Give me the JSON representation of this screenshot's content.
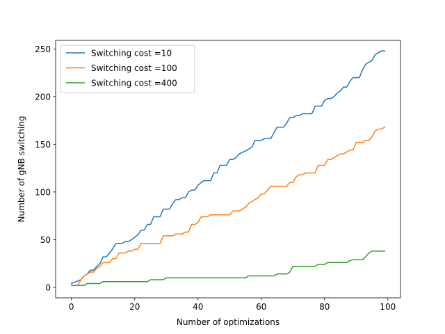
{
  "chart_data": {
    "type": "line",
    "title": "",
    "xlabel": "Number of optimizations",
    "ylabel": "Number of gNB switching",
    "xlim": [
      -5,
      104
    ],
    "ylim": [
      -11,
      259
    ],
    "xticks": [
      0,
      20,
      40,
      60,
      80,
      100
    ],
    "yticks": [
      0,
      50,
      100,
      150,
      200,
      250
    ],
    "grid": false,
    "legend_position": "top-left",
    "series": [
      {
        "name": "Switching cost =10",
        "color": "#1f77b4",
        "points": [
          [
            0,
            4
          ],
          [
            3,
            8
          ],
          [
            4,
            12
          ],
          [
            5,
            14
          ],
          [
            6,
            18
          ],
          [
            7,
            18
          ],
          [
            8,
            22
          ],
          [
            9,
            25
          ],
          [
            10,
            32
          ],
          [
            11,
            32
          ],
          [
            12,
            36
          ],
          [
            13,
            40
          ],
          [
            14,
            46
          ],
          [
            16,
            46
          ],
          [
            17,
            48
          ],
          [
            18,
            48
          ],
          [
            19,
            50
          ],
          [
            21,
            55
          ],
          [
            22,
            60
          ],
          [
            23,
            60
          ],
          [
            24,
            66
          ],
          [
            25,
            66
          ],
          [
            26,
            74
          ],
          [
            28,
            74
          ],
          [
            29,
            82
          ],
          [
            31,
            82
          ],
          [
            32,
            88
          ],
          [
            33,
            92
          ],
          [
            34,
            92
          ],
          [
            35,
            94
          ],
          [
            36,
            94
          ],
          [
            37,
            100
          ],
          [
            38,
            102
          ],
          [
            39,
            102
          ],
          [
            40,
            107
          ],
          [
            41,
            110
          ],
          [
            42,
            112
          ],
          [
            44,
            112
          ],
          [
            45,
            120
          ],
          [
            46,
            120
          ],
          [
            47,
            128
          ],
          [
            49,
            128
          ],
          [
            50,
            134
          ],
          [
            51,
            134
          ],
          [
            52,
            136
          ],
          [
            53,
            140
          ],
          [
            55,
            143
          ],
          [
            57,
            147
          ],
          [
            58,
            154
          ],
          [
            60,
            154
          ],
          [
            61,
            156
          ],
          [
            63,
            156
          ],
          [
            64,
            162
          ],
          [
            65,
            168
          ],
          [
            67,
            168
          ],
          [
            68,
            172
          ],
          [
            69,
            178
          ],
          [
            70,
            178
          ],
          [
            71,
            180
          ],
          [
            72,
            180
          ],
          [
            73,
            182
          ],
          [
            76,
            182
          ],
          [
            77,
            190
          ],
          [
            79,
            190
          ],
          [
            80,
            196
          ],
          [
            81,
            198
          ],
          [
            82,
            198
          ],
          [
            83,
            200
          ],
          [
            84,
            204
          ],
          [
            85,
            206
          ],
          [
            86,
            210
          ],
          [
            87,
            210
          ],
          [
            88,
            216
          ],
          [
            89,
            220
          ],
          [
            91,
            220
          ],
          [
            92,
            228
          ],
          [
            93,
            234
          ],
          [
            95,
            238
          ],
          [
            96,
            244
          ],
          [
            98,
            248
          ],
          [
            99,
            248
          ]
        ]
      },
      {
        "name": "Switching cost =100",
        "color": "#ff7f0e",
        "points": [
          [
            0,
            2
          ],
          [
            2,
            2
          ],
          [
            3,
            8
          ],
          [
            4,
            12
          ],
          [
            5,
            14
          ],
          [
            6,
            16
          ],
          [
            7,
            16
          ],
          [
            8,
            20
          ],
          [
            9,
            22
          ],
          [
            10,
            26
          ],
          [
            12,
            26
          ],
          [
            13,
            30
          ],
          [
            14,
            30
          ],
          [
            15,
            36
          ],
          [
            17,
            36
          ],
          [
            18,
            38
          ],
          [
            19,
            38
          ],
          [
            20,
            40
          ],
          [
            21,
            40
          ],
          [
            22,
            46
          ],
          [
            28,
            46
          ],
          [
            29,
            54
          ],
          [
            32,
            54
          ],
          [
            33,
            56
          ],
          [
            35,
            56
          ],
          [
            36,
            58
          ],
          [
            37,
            58
          ],
          [
            38,
            66
          ],
          [
            39,
            66
          ],
          [
            40,
            68
          ],
          [
            41,
            74
          ],
          [
            42,
            74
          ],
          [
            43,
            74
          ],
          [
            44,
            76
          ],
          [
            50,
            76
          ],
          [
            51,
            80
          ],
          [
            53,
            80
          ],
          [
            54,
            82
          ],
          [
            55,
            84
          ],
          [
            56,
            88
          ],
          [
            57,
            90
          ],
          [
            59,
            94
          ],
          [
            60,
            98
          ],
          [
            61,
            98
          ],
          [
            62,
            102
          ],
          [
            63,
            106
          ],
          [
            68,
            106
          ],
          [
            69,
            110
          ],
          [
            70,
            110
          ],
          [
            71,
            116
          ],
          [
            72,
            118
          ],
          [
            73,
            118
          ],
          [
            74,
            120
          ],
          [
            77,
            120
          ],
          [
            78,
            128
          ],
          [
            80,
            128
          ],
          [
            81,
            134
          ],
          [
            82,
            134
          ],
          [
            83,
            136
          ],
          [
            84,
            138
          ],
          [
            85,
            140
          ],
          [
            86,
            140
          ],
          [
            87,
            142
          ],
          [
            88,
            144
          ],
          [
            89,
            144
          ],
          [
            90,
            152
          ],
          [
            92,
            152
          ],
          [
            93,
            154
          ],
          [
            94,
            154
          ],
          [
            95,
            158
          ],
          [
            96,
            164
          ],
          [
            97,
            166
          ],
          [
            98,
            166
          ],
          [
            99,
            168
          ]
        ]
      },
      {
        "name": "Switching cost =400",
        "color": "#2ca02c",
        "points": [
          [
            0,
            2
          ],
          [
            4,
            2
          ],
          [
            5,
            4
          ],
          [
            8,
            4
          ],
          [
            9,
            4
          ],
          [
            10,
            6
          ],
          [
            24,
            6
          ],
          [
            25,
            8
          ],
          [
            29,
            8
          ],
          [
            30,
            10
          ],
          [
            54,
            10
          ],
          [
            55,
            10
          ],
          [
            56,
            12
          ],
          [
            63,
            12
          ],
          [
            64,
            12
          ],
          [
            65,
            14
          ],
          [
            68,
            14
          ],
          [
            69,
            16
          ],
          [
            70,
            22
          ],
          [
            77,
            22
          ],
          [
            78,
            24
          ],
          [
            80,
            24
          ],
          [
            81,
            26
          ],
          [
            86,
            26
          ],
          [
            87,
            26
          ],
          [
            88,
            28
          ],
          [
            89,
            29
          ],
          [
            91,
            29
          ],
          [
            92,
            29
          ],
          [
            93,
            32
          ],
          [
            94,
            36
          ],
          [
            95,
            38
          ],
          [
            99,
            38
          ]
        ]
      }
    ]
  }
}
